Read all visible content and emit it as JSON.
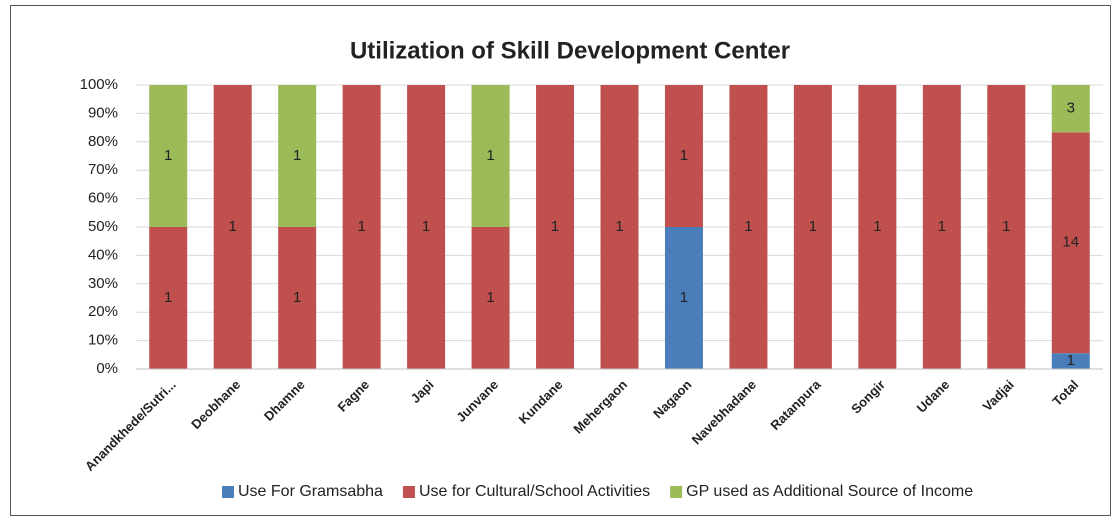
{
  "chart_data": {
    "type": "bar",
    "stacked_percent": true,
    "title": "Utilization of Skill Development Center",
    "categories": [
      "Anandkhede/Sutri...",
      "Deobhane",
      "Dhamne",
      "Fagne",
      "Japi",
      "Junvane",
      "Kundane",
      "Mehergaon",
      "Nagaon",
      "Navebhadane",
      "Ratanpura",
      "Songir",
      "Udane",
      "Vadjai",
      "Total"
    ],
    "series": [
      {
        "name": "Use For Gramsabha",
        "color": "#4a7ebb",
        "values": [
          0,
          0,
          0,
          0,
          0,
          0,
          0,
          0,
          1,
          0,
          0,
          0,
          0,
          0,
          1
        ]
      },
      {
        "name": "Use for Cultural/School Activities",
        "color": "#c0504d",
        "values": [
          1,
          1,
          1,
          1,
          1,
          1,
          1,
          1,
          1,
          1,
          1,
          1,
          1,
          1,
          14
        ]
      },
      {
        "name": "GP used as Additional Source of Income",
        "color": "#9bbb59",
        "values": [
          1,
          0,
          1,
          0,
          0,
          1,
          0,
          0,
          0,
          0,
          0,
          0,
          0,
          0,
          3
        ]
      }
    ],
    "ylim": [
      0,
      100
    ],
    "yticks": [
      {
        "value": 0,
        "label": "0%"
      },
      {
        "value": 10,
        "label": "10%"
      },
      {
        "value": 20,
        "label": "20%"
      },
      {
        "value": 30,
        "label": "30%"
      },
      {
        "value": 40,
        "label": "40%"
      },
      {
        "value": 50,
        "label": "50%"
      },
      {
        "value": 60,
        "label": "60%"
      },
      {
        "value": 70,
        "label": "70%"
      },
      {
        "value": 80,
        "label": "80%"
      },
      {
        "value": 90,
        "label": "90%"
      },
      {
        "value": 100,
        "label": "100%"
      }
    ],
    "grid": true,
    "legend": "bottom"
  }
}
